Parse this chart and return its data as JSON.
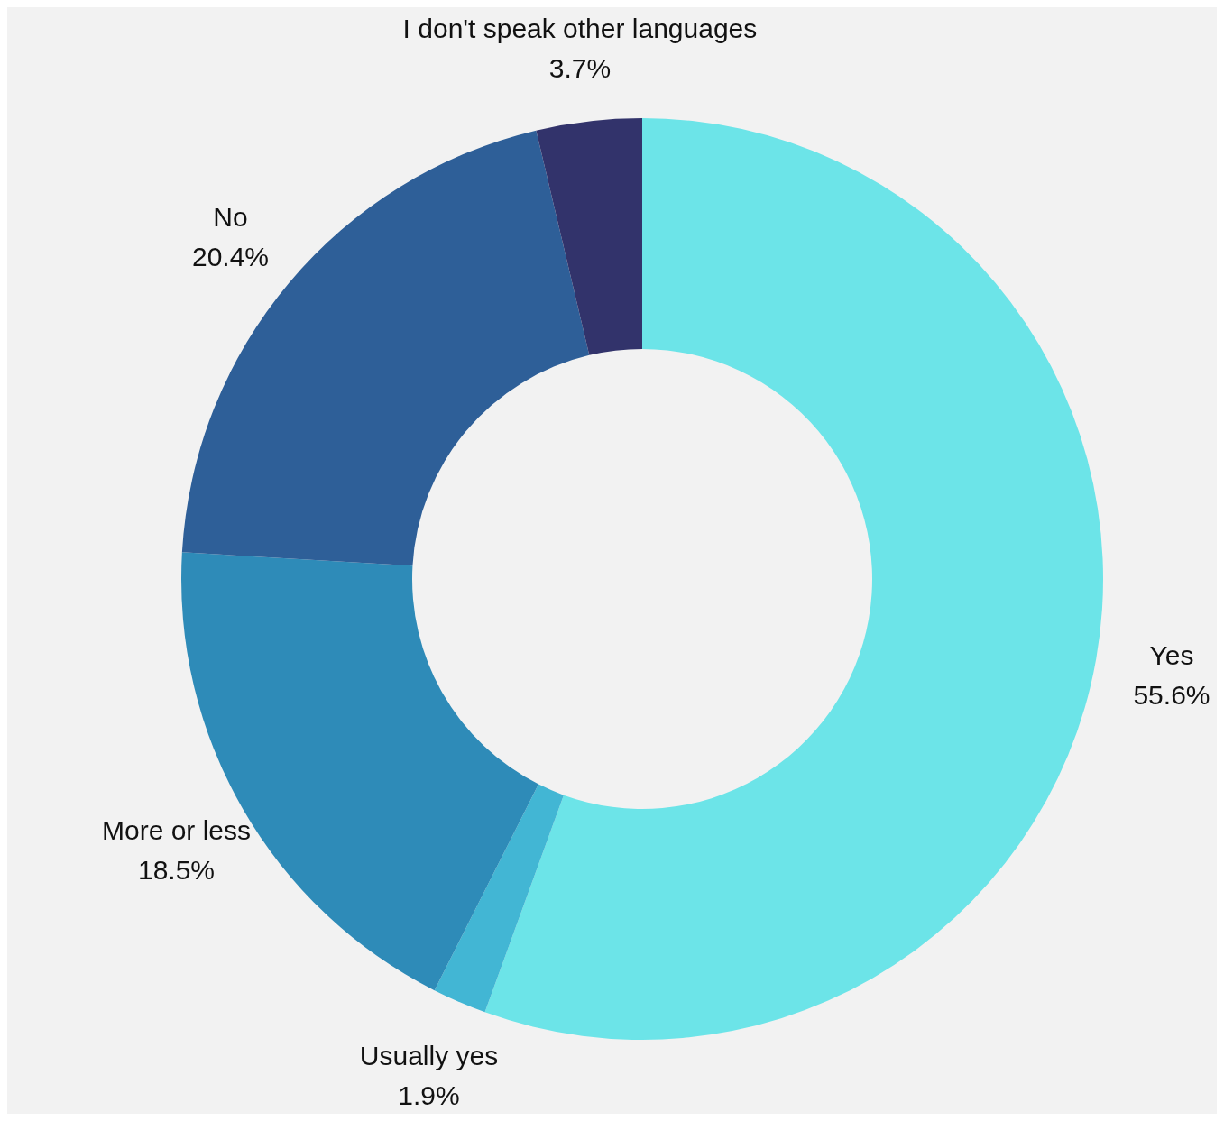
{
  "chart_data": {
    "type": "donut",
    "categories": [
      "Yes",
      "Usually yes",
      "More or less",
      "No",
      "I don't speak other languages"
    ],
    "values": [
      55.6,
      1.9,
      18.5,
      20.4,
      3.7
    ],
    "value_labels": [
      "55.6%",
      "1.9%",
      "18.5%",
      "20.4%",
      "3.7%"
    ],
    "colors": [
      "#6ce4e8",
      "#42b6d4",
      "#2e8bb8",
      "#2e5f98",
      "#32336b"
    ]
  }
}
